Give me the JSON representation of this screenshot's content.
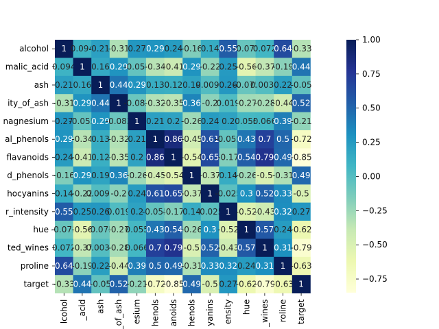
{
  "chart_data": {
    "type": "heatmap",
    "colormap": "YlGnBu",
    "vmin": -0.85,
    "vmax": 1,
    "colorbar_ticks": [
      "1.00",
      "0.75",
      "0.50",
      "0.25",
      "0.00",
      "−0.25",
      "−0.50",
      "−0.75"
    ],
    "colorbar_tick_values": [
      1.0,
      0.75,
      0.5,
      0.25,
      0.0,
      -0.25,
      -0.5,
      -0.75
    ],
    "row_tick_labels": [
      "alcohol",
      "malic_acid",
      "ash",
      "ity_of_ash",
      "nagnesium",
      "al_phenols",
      "flavanoids",
      "d_phenols",
      "hocyanins",
      "r_intensity",
      "hue",
      "ted_wines",
      "proline",
      "target"
    ],
    "col_tick_labels": [
      "lcohol",
      "_acid",
      "ash",
      "_of_ash",
      "esium",
      "henols",
      "anoids",
      "henols",
      "yanins",
      "ensity",
      "hue",
      "_wines",
      "roline",
      "target"
    ],
    "values": [
      [
        1,
        0.094,
        0.21,
        -0.31,
        0.27,
        0.29,
        0.24,
        -0.16,
        0.14,
        0.55,
        -0.072,
        0.072,
        0.64,
        -0.33
      ],
      [
        0.094,
        1,
        0.16,
        0.29,
        -0.055,
        -0.34,
        -0.41,
        0.29,
        -0.22,
        0.25,
        -0.56,
        -0.37,
        -0.19,
        0.44
      ],
      [
        0.21,
        0.16,
        1,
        0.44,
        0.29,
        0.13,
        0.12,
        0.19,
        0.0097,
        0.26,
        -0.075,
        0.0039,
        0.22,
        -0.05
      ],
      [
        -0.31,
        0.29,
        0.44,
        1,
        -0.083,
        -0.32,
        -0.35,
        0.36,
        -0.2,
        0.019,
        -0.27,
        -0.28,
        -0.44,
        0.52
      ],
      [
        0.27,
        -0.055,
        0.29,
        -0.083,
        1,
        0.21,
        0.2,
        -0.26,
        0.24,
        0.2,
        0.055,
        0.066,
        0.39,
        -0.21
      ],
      [
        0.29,
        -0.34,
        0.13,
        -0.32,
        0.21,
        1,
        0.86,
        -0.45,
        0.61,
        -0.055,
        0.43,
        0.7,
        0.5,
        -0.72
      ],
      [
        0.24,
        -0.41,
        0.12,
        -0.35,
        0.2,
        0.86,
        1,
        -0.54,
        0.65,
        -0.17,
        0.54,
        0.79,
        0.49,
        -0.85
      ],
      [
        -0.16,
        0.29,
        0.19,
        0.36,
        -0.26,
        -0.45,
        -0.54,
        1,
        -0.37,
        0.14,
        -0.26,
        -0.5,
        -0.31,
        0.49
      ],
      [
        0.14,
        -0.22,
        0.0097,
        -0.2,
        0.24,
        0.61,
        0.65,
        -0.37,
        1,
        -0.025,
        0.3,
        0.52,
        0.33,
        -0.5
      ],
      [
        0.55,
        0.25,
        0.26,
        0.019,
        0.2,
        -0.055,
        -0.17,
        0.14,
        -0.025,
        1,
        -0.52,
        -0.43,
        0.32,
        0.27
      ],
      [
        -0.072,
        -0.56,
        -0.075,
        -0.27,
        0.055,
        0.43,
        0.54,
        -0.26,
        0.3,
        -0.52,
        1,
        0.57,
        0.24,
        -0.62
      ],
      [
        0.072,
        -0.37,
        0.0039,
        -0.28,
        0.066,
        0.7,
        0.79,
        -0.5,
        0.52,
        -0.43,
        0.57,
        1,
        0.31,
        -0.79
      ],
      [
        0.64,
        -0.19,
        0.22,
        -0.44,
        0.39,
        0.5,
        0.49,
        -0.31,
        0.33,
        0.32,
        0.24,
        0.31,
        1,
        -0.63
      ],
      [
        -0.33,
        0.44,
        -0.05,
        0.52,
        -0.21,
        -0.72,
        -0.85,
        0.49,
        -0.5,
        0.27,
        -0.62,
        -0.79,
        -0.63,
        1
      ]
    ],
    "annotations": [
      [
        "1",
        "0.094",
        "0.21",
        "-0.31",
        "0.27",
        "0.29",
        "0.24",
        "-0.16",
        "0.14",
        "0.55",
        "-0.072",
        "0.072",
        "0.64",
        "-0.33"
      ],
      [
        "0.094",
        "1",
        "0.16",
        "0.29",
        "-0.055",
        "-0.34",
        "-0.41",
        "0.29",
        "-0.22",
        "0.25",
        "-0.56",
        "-0.37",
        "-0.19",
        "0.44"
      ],
      [
        "0.21",
        "0.16",
        "1",
        "0.44",
        "0.29",
        "0.13",
        "0.12",
        "0.19",
        "0.0097",
        "0.26",
        "-0.075",
        "0.0039",
        "0.22",
        "-0.05"
      ],
      [
        "-0.31",
        "0.29",
        "0.44",
        "1",
        "-0.083",
        "-0.32",
        "-0.35",
        "0.36",
        "-0.2",
        "0.019",
        "-0.27",
        "-0.28",
        "-0.44",
        "0.52"
      ],
      [
        "0.27",
        "-0.055",
        "0.29",
        "-0.083",
        "1",
        "0.21",
        "0.2",
        "-0.26",
        "0.24",
        "0.2",
        "0.055",
        "0.066",
        "0.39",
        "-0.21"
      ],
      [
        "0.29",
        "-0.34",
        "0.13",
        "-0.32",
        "0.21",
        "1",
        "0.86",
        "-0.45",
        "0.61",
        "-0.055",
        "0.43",
        "0.7",
        "0.5",
        "-0.72"
      ],
      [
        "0.24",
        "-0.41",
        "0.12",
        "-0.35",
        "0.2",
        "0.86",
        "1",
        "-0.54",
        "0.65",
        "-0.17",
        "0.54",
        "0.79",
        "0.49",
        "-0.85"
      ],
      [
        "-0.16",
        "0.29",
        "0.19",
        "0.36",
        "-0.26",
        "-0.45",
        "-0.54",
        "1",
        "-0.37",
        "0.14",
        "-0.26",
        "-0.5",
        "-0.31",
        "0.49"
      ],
      [
        "0.14",
        "-0.22",
        "0.0097",
        "-0.2",
        "0.24",
        "0.61",
        "0.65",
        "-0.37",
        "1",
        "-0.025",
        "0.3",
        "0.52",
        "0.33",
        "-0.5"
      ],
      [
        "0.55",
        "0.25",
        "0.26",
        "0.019",
        "0.2",
        "-0.055",
        "-0.17",
        "0.14",
        "-0.025",
        "1",
        "-0.52",
        "-0.43",
        "0.32",
        "0.27"
      ],
      [
        "-0.072",
        "-0.56",
        "-0.075",
        "-0.27",
        "0.055",
        "0.43",
        "0.54",
        "-0.26",
        "0.3",
        "-0.52",
        "1",
        "0.57",
        "0.24",
        "-0.62"
      ],
      [
        "0.072",
        "-0.37",
        "0.0039",
        "-0.28",
        "0.066",
        "0.7",
        "0.79",
        "-0.5",
        "0.52",
        "-0.43",
        "0.57",
        "1",
        "0.31",
        "-0.79"
      ],
      [
        "0.64",
        "-0.19",
        "0.22",
        "-0.44",
        "0.39",
        "0.5",
        "0.49",
        "-0.31",
        "0.33",
        "0.32",
        "0.24",
        "0.31",
        "1",
        "-0.63"
      ],
      [
        "-0.33",
        "0.44",
        "-0.05",
        "0.52",
        "-0.21",
        "-0.72",
        "-0.85",
        "0.49",
        "-0.5",
        "0.27",
        "-0.62",
        "-0.79",
        "-0.63",
        "1"
      ]
    ],
    "title": "",
    "xlabel": "",
    "ylabel": "",
    "grid": false,
    "legend": "colorbar right"
  }
}
